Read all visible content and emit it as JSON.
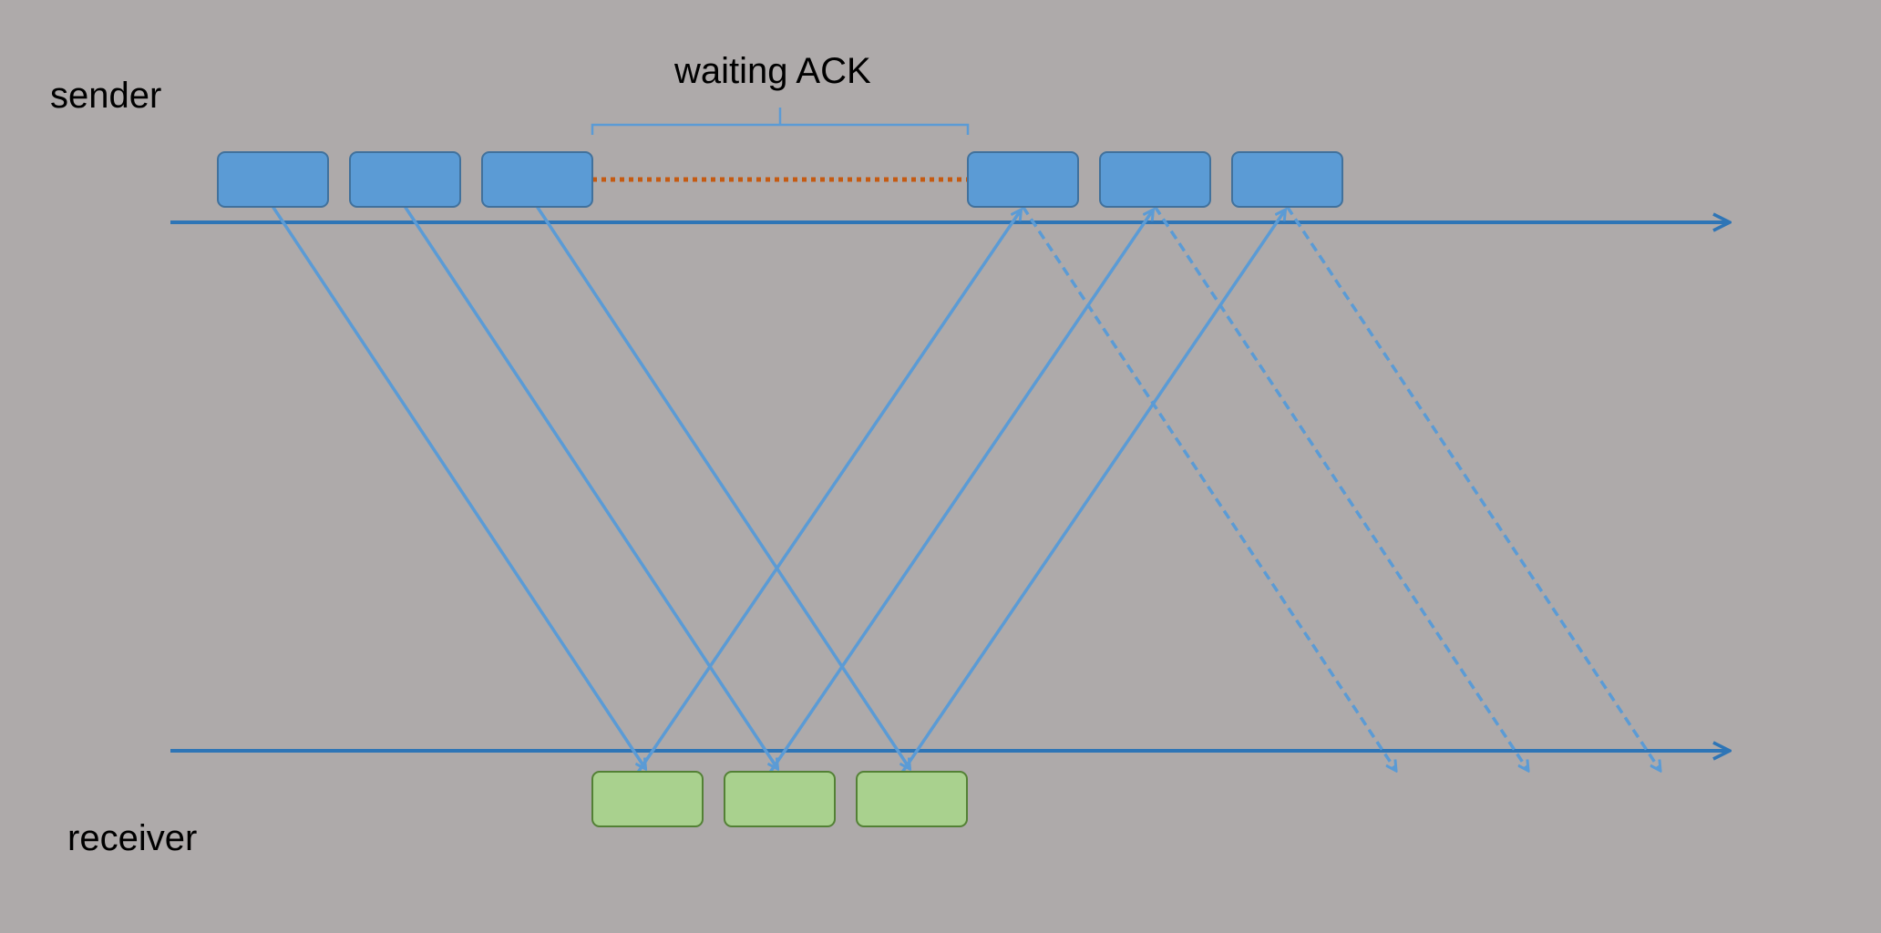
{
  "labels": {
    "sender": "sender",
    "receiver": "receiver",
    "waiting": "waiting ACK"
  },
  "colors": {
    "background": "#aeaaaa",
    "timeline": "#2e75b6",
    "packet_fill": "#5b9bd5",
    "packet_stroke": "#41719c",
    "ack_fill": "#a9d18e",
    "ack_stroke": "#538135",
    "arrow": "#5b9bd5",
    "wait_line": "#c55a11",
    "brace": "#5b9bd5"
  },
  "sender_packets": [
    {
      "id": "p1",
      "group": "first-window"
    },
    {
      "id": "p2",
      "group": "first-window"
    },
    {
      "id": "p3",
      "group": "first-window"
    },
    {
      "id": "p4",
      "group": "second-window"
    },
    {
      "id": "p5",
      "group": "second-window"
    },
    {
      "id": "p6",
      "group": "second-window"
    }
  ],
  "receiver_packets": [
    {
      "id": "r1"
    },
    {
      "id": "r2"
    },
    {
      "id": "r3"
    }
  ],
  "transmissions": [
    {
      "from": "p1",
      "to": "r1",
      "kind": "data"
    },
    {
      "from": "p2",
      "to": "r2",
      "kind": "data"
    },
    {
      "from": "p3",
      "to": "r3",
      "kind": "data"
    }
  ],
  "acks": [
    {
      "from": "r1",
      "to": "p4",
      "kind": "ack"
    },
    {
      "from": "r2",
      "to": "p5",
      "kind": "ack"
    },
    {
      "from": "r3",
      "to": "p6",
      "kind": "ack"
    }
  ],
  "next_transmissions": [
    {
      "from": "p4",
      "kind": "pending"
    },
    {
      "from": "p5",
      "kind": "pending"
    },
    {
      "from": "p6",
      "kind": "pending"
    }
  ]
}
